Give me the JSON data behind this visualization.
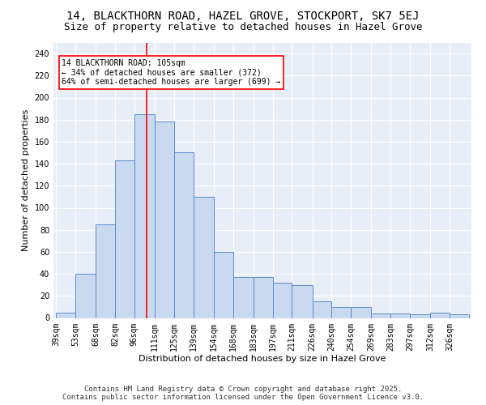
{
  "title_line1": "14, BLACKTHORN ROAD, HAZEL GROVE, STOCKPORT, SK7 5EJ",
  "title_line2": "Size of property relative to detached houses in Hazel Grove",
  "xlabel": "Distribution of detached houses by size in Hazel Grove",
  "ylabel": "Number of detached properties",
  "bin_edges": [
    39,
    53,
    68,
    82,
    96,
    111,
    125,
    139,
    154,
    168,
    183,
    197,
    211,
    226,
    240,
    254,
    269,
    283,
    297,
    312,
    326,
    340
  ],
  "bar_heights": [
    5,
    40,
    85,
    143,
    185,
    178,
    150,
    110,
    60,
    37,
    37,
    32,
    30,
    15,
    10,
    10,
    4,
    4,
    3,
    5,
    3
  ],
  "bar_color": "#c9d9f0",
  "bar_edge_color": "#5b8dcb",
  "vline_x": 105,
  "vline_color": "red",
  "annotation_text": "14 BLACKTHORN ROAD: 105sqm\n← 34% of detached houses are smaller (372)\n64% of semi-detached houses are larger (699) →",
  "annotation_box_color": "white",
  "annotation_box_edge_color": "red",
  "ylim": [
    0,
    250
  ],
  "yticks": [
    0,
    20,
    40,
    60,
    80,
    100,
    120,
    140,
    160,
    180,
    200,
    220,
    240
  ],
  "tick_labels": [
    "39sqm",
    "53sqm",
    "68sqm",
    "82sqm",
    "96sqm",
    "111sqm",
    "125sqm",
    "139sqm",
    "154sqm",
    "168sqm",
    "183sqm",
    "197sqm",
    "211sqm",
    "226sqm",
    "240sqm",
    "254sqm",
    "269sqm",
    "283sqm",
    "297sqm",
    "312sqm",
    "326sqm"
  ],
  "background_color": "#e8eef8",
  "footer_line1": "Contains HM Land Registry data © Crown copyright and database right 2025.",
  "footer_line2": "Contains public sector information licensed under the Open Government Licence v3.0.",
  "title_fontsize": 10,
  "subtitle_fontsize": 9,
  "axis_label_fontsize": 8,
  "tick_fontsize": 7,
  "footer_fontsize": 6.5,
  "annot_fontsize": 7
}
